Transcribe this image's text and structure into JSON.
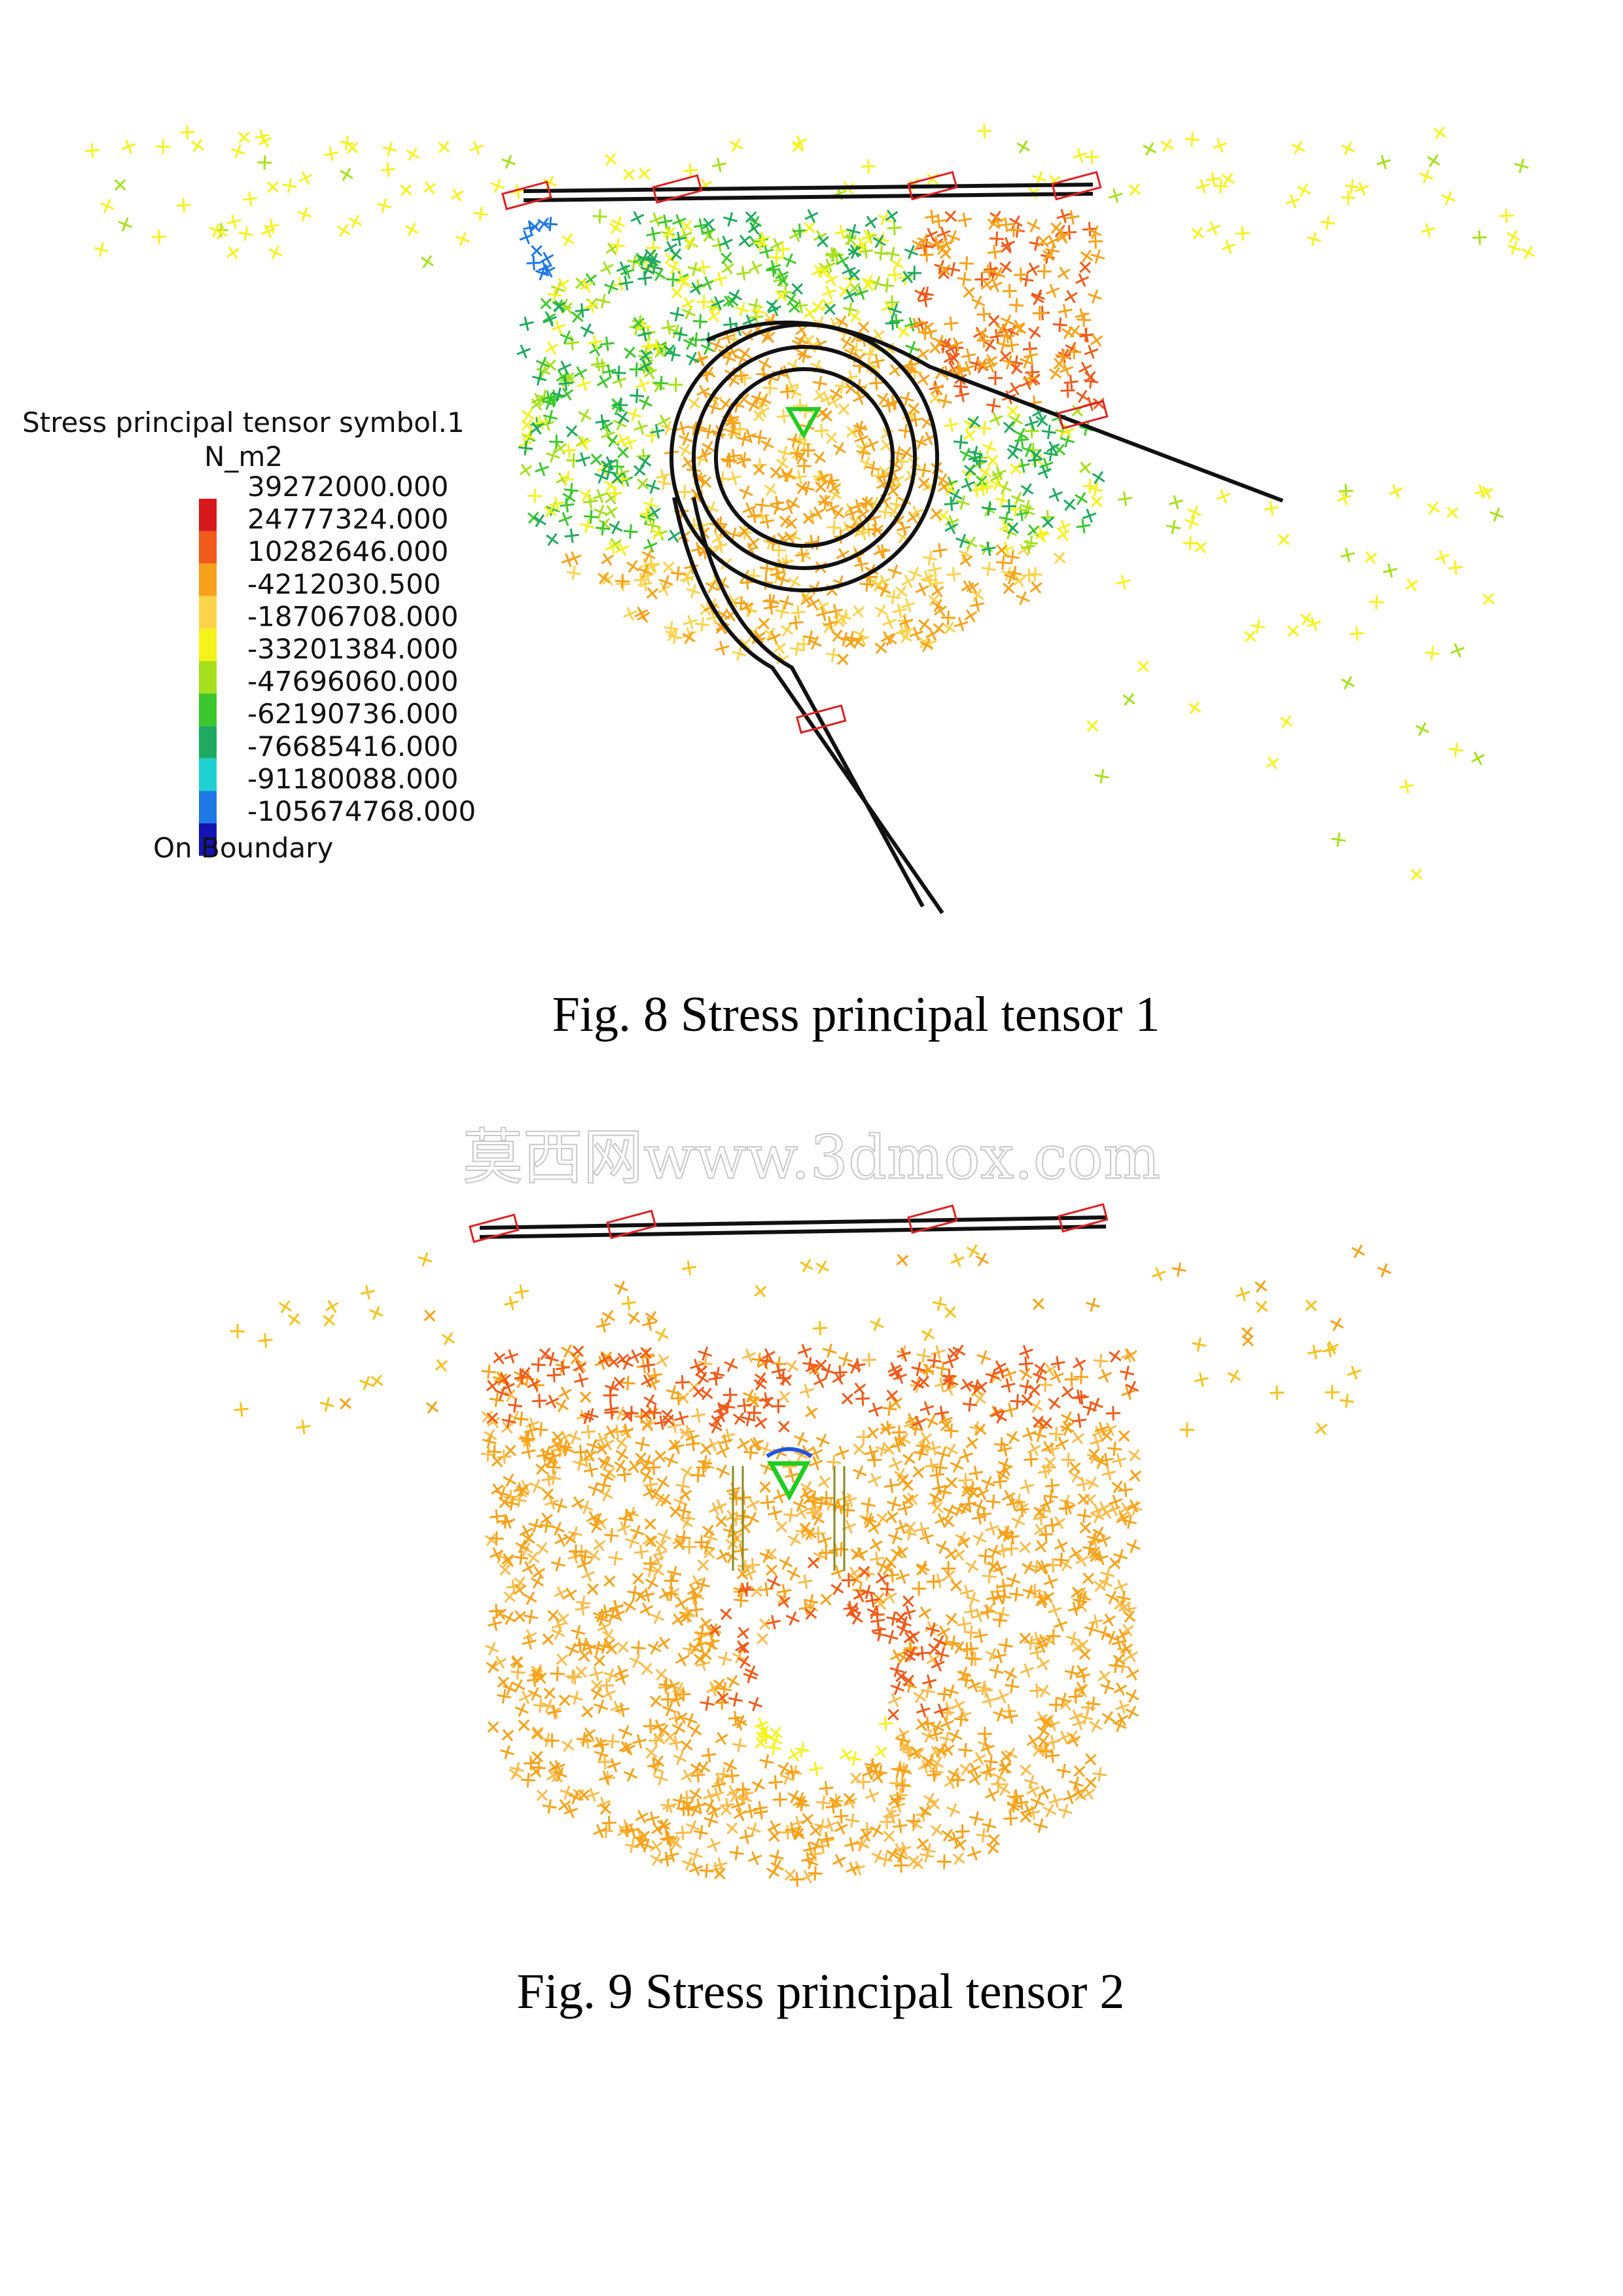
{
  "figure8": {
    "legend": {
      "title": "Stress principal tensor symbol.1",
      "unit": "N_m2",
      "labels": [
        "39272000.000",
        "24777324.000",
        "10282646.000",
        "-4212030.500",
        "-18706708.000",
        "-33201384.000",
        "-47696060.000",
        "-62190736.000",
        "-76685416.000",
        "-91180088.000",
        "-105674768.000"
      ],
      "footer": "On Boundary"
    },
    "caption": "Fig. 8 Stress principal tensor 1"
  },
  "watermark": "莫西网www.3dmox.com",
  "figure9": {
    "caption": "Fig. 9 Stress principal tensor 2"
  }
}
